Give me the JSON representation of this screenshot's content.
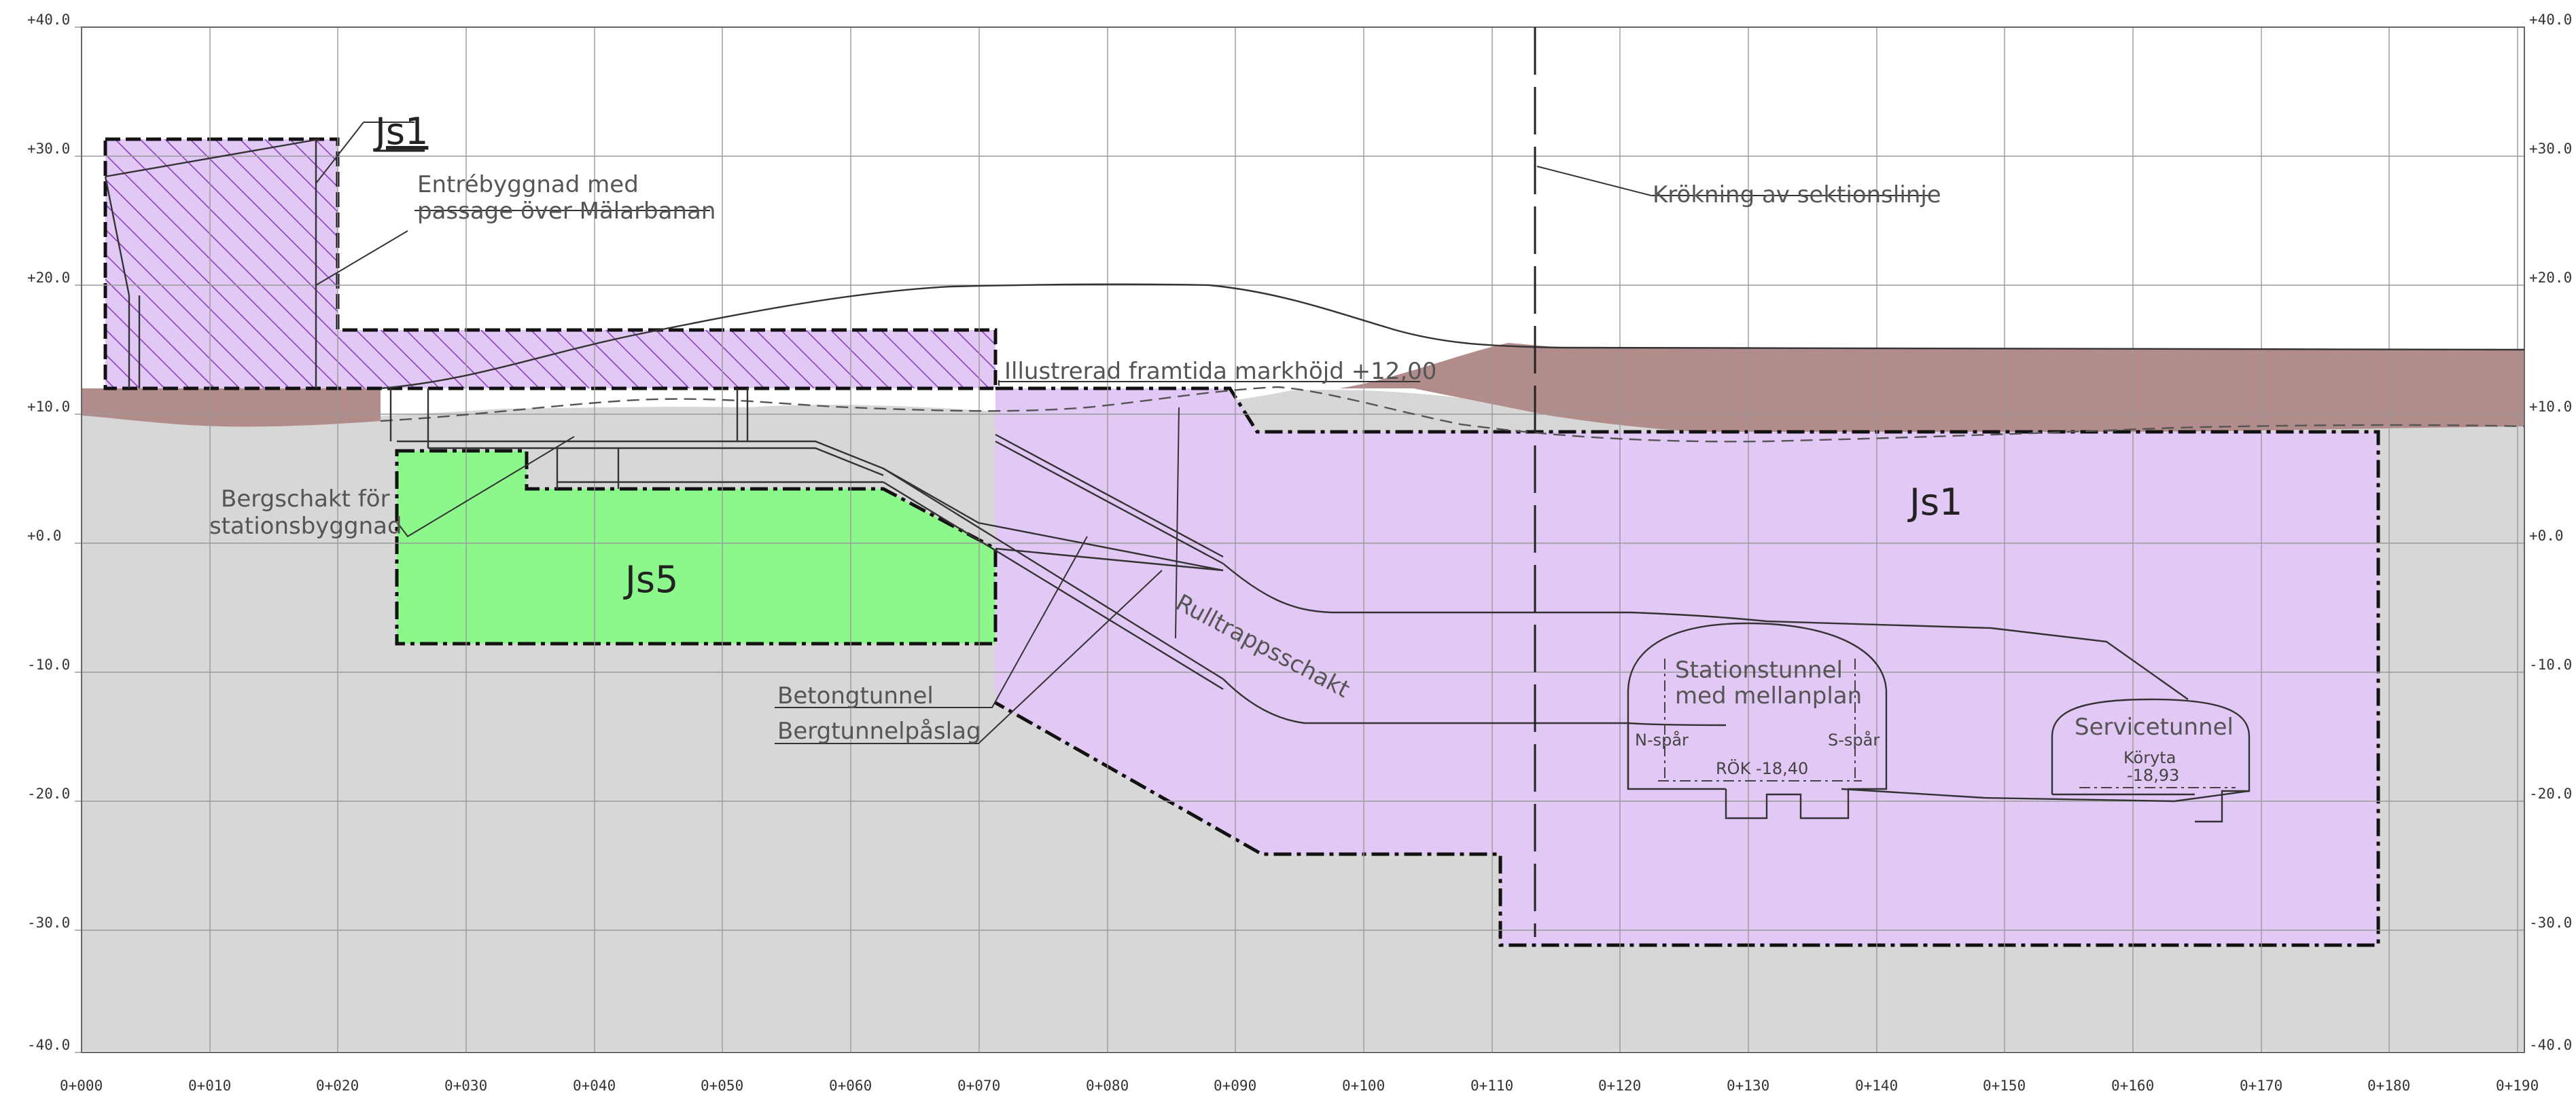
{
  "drawing": {
    "colors": {
      "background": "#ffffff",
      "rock": "#d7d7d7",
      "soil": "#b18c8a",
      "js1_zone": "#e2c8f4",
      "js1_hatch": "#8a3fc2",
      "js5_zone": "#8cf88c"
    },
    "elevation_ticks": [
      "+40.0",
      "+30.0",
      "+20.0",
      "+10.0",
      "+0.0",
      "-10.0",
      "-20.0",
      "-30.0",
      "-40.0"
    ],
    "chainage_ticks": [
      "0+000",
      "0+010",
      "0+020",
      "0+030",
      "0+040",
      "0+050",
      "0+060",
      "0+070",
      "0+080",
      "0+090",
      "0+100",
      "0+110",
      "0+120",
      "0+130",
      "0+140",
      "0+150",
      "0+160",
      "0+170",
      "0+180",
      "0+190"
    ],
    "zones": {
      "js1_top": "Js1",
      "js1_main": "Js1",
      "js5": "Js5"
    },
    "annotations": {
      "entre_line1": "Entrébyggnad med",
      "entre_line2": "passage över Mälarbanan",
      "krokning": "Krökning av sektionslinje",
      "framtida_markhojd": "Illustrerad framtida markhöjd +12,00",
      "bergschakt_line1": "Bergschakt för",
      "bergschakt_line2": "stationsbyggnad",
      "betongtunnel": "Betongtunnel",
      "bergtunnelpaslag": "Bergtunnelpåslag",
      "rulltrappsschakt": "Rulltrappsschakt",
      "stationstunnel_line1": "Stationstunnel",
      "stationstunnel_line2": "med mellanplan",
      "n_spar": "N-spår",
      "s_spar": "S-spår",
      "rok": "RÖK -18,40",
      "servicetunnel": "Servicetunnel",
      "koryta_line1": "Köryta",
      "koryta_line2": "-18,93"
    }
  }
}
